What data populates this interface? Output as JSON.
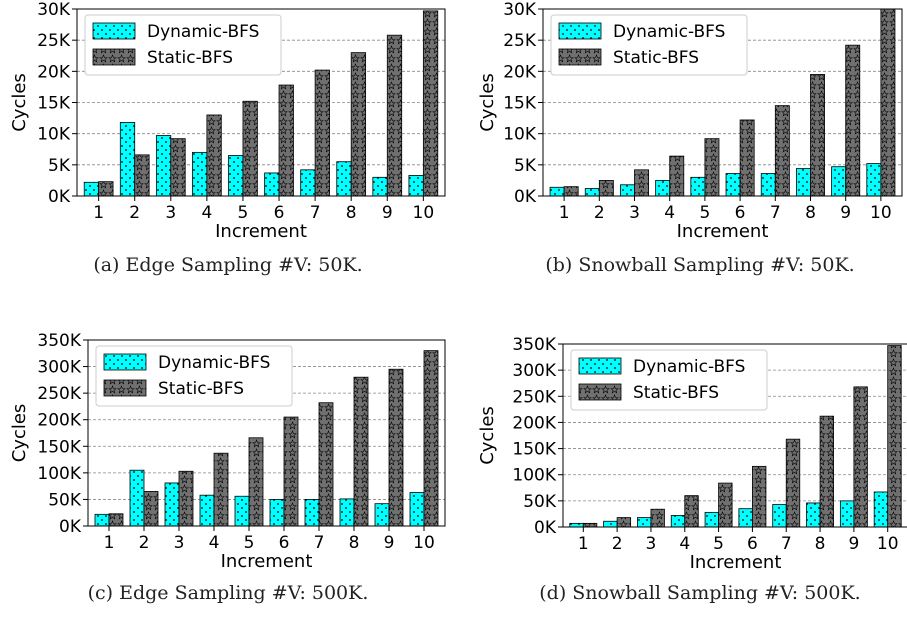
{
  "chart_data": [
    {
      "type": "bar",
      "caption": "(a) Edge Sampling #V: 50K.",
      "xlabel": "Increment",
      "ylabel": "Cycles",
      "categories": [
        "1",
        "2",
        "3",
        "4",
        "5",
        "6",
        "7",
        "8",
        "9",
        "10"
      ],
      "ylim": [
        0,
        30000
      ],
      "yticks": [
        0,
        5000,
        10000,
        15000,
        20000,
        25000,
        30000
      ],
      "ytick_labels": [
        "0K",
        "5K",
        "10K",
        "15K",
        "20K",
        "25K",
        "30K"
      ],
      "grid": "horizontal dashed",
      "legend_position": "top-left",
      "series": [
        {
          "name": "Dynamic-BFS",
          "color": "#00ffff",
          "pattern": "dots",
          "values": [
            2200,
            11800,
            9700,
            7000,
            6500,
            3700,
            4200,
            5500,
            3000,
            3300
          ]
        },
        {
          "name": "Static-BFS",
          "color": "#707070",
          "pattern": "stars",
          "values": [
            2300,
            6600,
            9200,
            13000,
            15200,
            17800,
            20200,
            23000,
            25800,
            29700
          ]
        }
      ]
    },
    {
      "type": "bar",
      "caption": "(b) Snowball Sampling #V: 50K.",
      "xlabel": "Increment",
      "ylabel": "Cycles",
      "categories": [
        "1",
        "2",
        "3",
        "4",
        "5",
        "6",
        "7",
        "8",
        "9",
        "10"
      ],
      "ylim": [
        0,
        30000
      ],
      "yticks": [
        0,
        5000,
        10000,
        15000,
        20000,
        25000,
        30000
      ],
      "ytick_labels": [
        "0K",
        "5K",
        "10K",
        "15K",
        "20K",
        "25K",
        "30K"
      ],
      "grid": "horizontal dashed",
      "legend_position": "top-left",
      "series": [
        {
          "name": "Dynamic-BFS",
          "color": "#00ffff",
          "pattern": "dots",
          "values": [
            1400,
            1200,
            1800,
            2500,
            3000,
            3600,
            3600,
            4400,
            4700,
            5200
          ]
        },
        {
          "name": "Static-BFS",
          "color": "#707070",
          "pattern": "stars",
          "values": [
            1500,
            2500,
            4200,
            6400,
            9200,
            12200,
            14500,
            19500,
            24200,
            30000
          ]
        }
      ]
    },
    {
      "type": "bar",
      "caption": "(c) Edge Sampling #V: 500K.",
      "xlabel": "Increment",
      "ylabel": "Cycles",
      "categories": [
        "1",
        "2",
        "3",
        "4",
        "5",
        "6",
        "7",
        "8",
        "9",
        "10"
      ],
      "ylim": [
        0,
        350000
      ],
      "yticks": [
        0,
        50000,
        100000,
        150000,
        200000,
        250000,
        300000,
        350000
      ],
      "ytick_labels": [
        "0K",
        "50K",
        "100K",
        "150K",
        "200K",
        "250K",
        "300K",
        "350K"
      ],
      "grid": "horizontal dashed",
      "legend_position": "top-left",
      "series": [
        {
          "name": "Dynamic-BFS",
          "color": "#00ffff",
          "pattern": "dots",
          "values": [
            22000,
            105000,
            81000,
            58000,
            56000,
            50000,
            50000,
            51000,
            42000,
            63000
          ]
        },
        {
          "name": "Static-BFS",
          "color": "#707070",
          "pattern": "stars",
          "values": [
            23000,
            65000,
            103000,
            137000,
            166000,
            205000,
            232000,
            280000,
            295000,
            330000
          ]
        }
      ]
    },
    {
      "type": "bar",
      "caption": "(d) Snowball Sampling #V: 500K.",
      "xlabel": "Increment",
      "ylabel": "Cycles",
      "categories": [
        "1",
        "2",
        "3",
        "4",
        "5",
        "6",
        "7",
        "8",
        "9",
        "10"
      ],
      "ylim": [
        0,
        350000
      ],
      "yticks": [
        0,
        50000,
        100000,
        150000,
        200000,
        250000,
        300000,
        350000
      ],
      "ytick_labels": [
        "0K",
        "50K",
        "100K",
        "150K",
        "200K",
        "250K",
        "300K",
        "350K"
      ],
      "grid": "horizontal dashed",
      "legend_position": "top-left",
      "series": [
        {
          "name": "Dynamic-BFS",
          "color": "#00ffff",
          "pattern": "dots",
          "values": [
            7000,
            11000,
            18000,
            22000,
            28000,
            35000,
            43000,
            46000,
            50000,
            67000
          ]
        },
        {
          "name": "Static-BFS",
          "color": "#707070",
          "pattern": "stars",
          "values": [
            7000,
            18000,
            34000,
            60000,
            84000,
            116000,
            168000,
            212000,
            268000,
            347000
          ]
        }
      ]
    }
  ]
}
